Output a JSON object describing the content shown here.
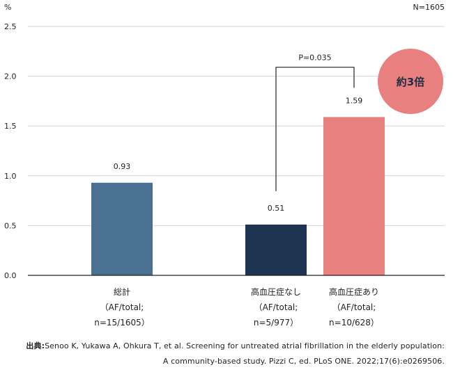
{
  "chart_data": {
    "type": "bar",
    "y_unit": "%",
    "sample_size": "N=1605",
    "categories": [
      [
        "総計",
        "（AF/total;",
        "n=15/1605）"
      ],
      [
        "高血圧症なし",
        "（AF/total;",
        "n=5/977）"
      ],
      [
        "高血圧症あり",
        "（AF/total;",
        "n=10/628）"
      ]
    ],
    "values": [
      0.93,
      0.51,
      1.59
    ],
    "value_labels": [
      "0.93",
      "0.51",
      "1.59"
    ],
    "bar_colors": [
      "#4a7191",
      "#1d3350",
      "#e98080"
    ],
    "ylim": [
      0,
      2.5
    ],
    "yticks": [
      "0.0",
      "0.5",
      "1.0",
      "1.5",
      "2.0",
      "2.5"
    ],
    "grid": true,
    "annotation": {
      "p_value": "P=0.035",
      "bracket_between": [
        1,
        2
      ],
      "bracket_top": 2.09,
      "badge_text": "約3倍",
      "badge_color": "#e98080"
    }
  },
  "source": {
    "label": "出典:",
    "line1": "Senoo K, Yukawa A, Ohkura T, et al. Screening for untreated atrial fibrillation in the elderly population:",
    "line2": "A community-based study. Pizzi C, ed. PLoS ONE. 2022;17(6):e0269506."
  }
}
